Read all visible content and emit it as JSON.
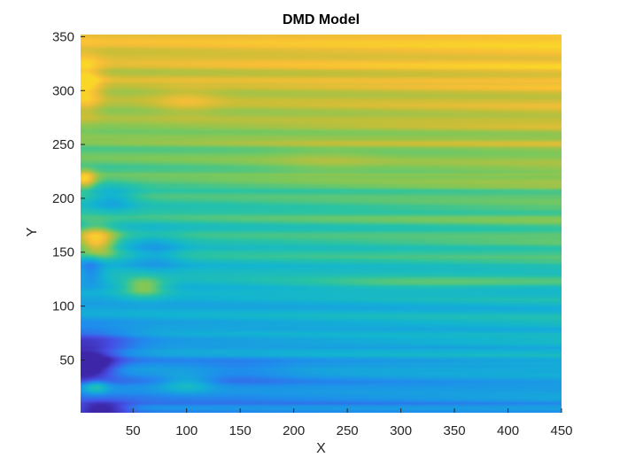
{
  "chart_data": {
    "type": "heatmap",
    "title": "DMD Model",
    "xlabel": "X",
    "ylabel": "Y",
    "xlim": [
      1,
      450
    ],
    "ylim": [
      1,
      352
    ],
    "xticks": [
      50,
      100,
      150,
      200,
      250,
      300,
      350,
      400,
      450
    ],
    "yticks": [
      50,
      100,
      150,
      200,
      250,
      300,
      350
    ],
    "colormap": "parula",
    "colors": {
      "low": "#3e26a8",
      "mid_low": "#1f8ded",
      "mid": "#28c0a5",
      "mid_high": "#a5c43a",
      "high": "#f8c931"
    },
    "value_range": [
      0,
      1
    ],
    "blobs": [
      {
        "x": 5,
        "y": 45,
        "rx": 25,
        "ry": 12,
        "value": -0.55
      },
      {
        "x": 20,
        "y": 5,
        "rx": 25,
        "ry": 6,
        "value": -0.35
      },
      {
        "x": 5,
        "y": 65,
        "rx": 45,
        "ry": 15,
        "value": -0.25
      },
      {
        "x": 15,
        "y": 160,
        "rx": 18,
        "ry": 14,
        "value": 0.45
      },
      {
        "x": 5,
        "y": 218,
        "rx": 10,
        "ry": 8,
        "value": 0.35
      },
      {
        "x": 5,
        "y": 305,
        "rx": 15,
        "ry": 25,
        "value": 0.25
      },
      {
        "x": 60,
        "y": 118,
        "rx": 22,
        "ry": 10,
        "value": 0.3
      },
      {
        "x": 100,
        "y": 28,
        "rx": 25,
        "ry": 8,
        "value": 0.2
      },
      {
        "x": 15,
        "y": 25,
        "rx": 12,
        "ry": 6,
        "value": 0.25
      },
      {
        "x": 10,
        "y": 135,
        "rx": 12,
        "ry": 15,
        "value": -0.2
      },
      {
        "x": 70,
        "y": 150,
        "rx": 25,
        "ry": 18,
        "value": -0.15
      },
      {
        "x": 30,
        "y": 200,
        "rx": 22,
        "ry": 12,
        "value": -0.18
      },
      {
        "x": 100,
        "y": 290,
        "rx": 30,
        "ry": 12,
        "value": 0.1
      },
      {
        "x": 230,
        "y": 235,
        "rx": 50,
        "ry": 12,
        "value": 0.05
      },
      {
        "x": 150,
        "y": 40,
        "rx": 50,
        "ry": 10,
        "value": -0.08
      },
      {
        "x": 300,
        "y": 120,
        "rx": 120,
        "ry": 6,
        "value": 0.1
      }
    ]
  }
}
